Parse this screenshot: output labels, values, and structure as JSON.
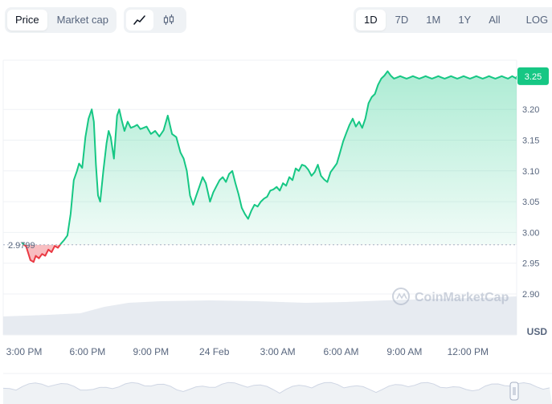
{
  "toggles": {
    "metric": [
      {
        "label": "Price",
        "active": true
      },
      {
        "label": "Market cap",
        "active": false
      }
    ],
    "chart_style": [
      {
        "icon": "line-chart-icon",
        "active": true
      },
      {
        "icon": "candlestick-icon",
        "active": false
      }
    ]
  },
  "ranges": [
    {
      "label": "1D",
      "active": true
    },
    {
      "label": "7D",
      "active": false
    },
    {
      "label": "1M",
      "active": false
    },
    {
      "label": "1Y",
      "active": false
    },
    {
      "label": "All",
      "active": false
    }
  ],
  "log_label": "LOG",
  "download_icon": "download-icon",
  "watermark": "CoinMarketCap",
  "currency": "USD",
  "colors": {
    "up": "#16c784",
    "down": "#ea3943",
    "axis_text": "#58667e",
    "grid": "#eff2f5",
    "volume": "#e3e7ee"
  },
  "chart_data": {
    "type": "area",
    "x_tick_labels": [
      "3:00 PM",
      "6:00 PM",
      "9:00 PM",
      "24 Feb",
      "3:00 AM",
      "6:00 AM",
      "9:00 AM",
      "12:00 PM"
    ],
    "y_tick_labels": [
      "3.20",
      "3.15",
      "3.10",
      "3.05",
      "3.00",
      "2.95",
      "2.90"
    ],
    "ylim": [
      2.86,
      3.3
    ],
    "reference_price": 2.9799,
    "reference_label": "2.9799",
    "current_price": 3.2539,
    "current_label": "3.25",
    "grid": true,
    "x_hours_from_3pm": [
      -0.1,
      0.1,
      0.3,
      0.45,
      0.55,
      0.7,
      0.85,
      1.0,
      1.15,
      1.3,
      1.45,
      1.6,
      1.75,
      1.9,
      2.05,
      2.2,
      2.35,
      2.5,
      2.6,
      2.75,
      2.9,
      3.05,
      3.2,
      3.3,
      3.4,
      3.5,
      3.6,
      3.75,
      3.9,
      4.0,
      4.1,
      4.25,
      4.4,
      4.5,
      4.6,
      4.75,
      4.9,
      5.05,
      5.2,
      5.35,
      5.5,
      5.65,
      5.8,
      6.0,
      6.2,
      6.4,
      6.6,
      6.8,
      7.0,
      7.2,
      7.4,
      7.55,
      7.7,
      7.85,
      8.0,
      8.15,
      8.3,
      8.45,
      8.6,
      8.8,
      8.95,
      9.1,
      9.25,
      9.4,
      9.55,
      9.7,
      9.85,
      10.0,
      10.15,
      10.3,
      10.45,
      10.6,
      10.75,
      10.9,
      11.05,
      11.2,
      11.35,
      11.5,
      11.65,
      11.8,
      11.95,
      12.1,
      12.25,
      12.4,
      12.55,
      12.7,
      12.85,
      13.0,
      13.15,
      13.3,
      13.45,
      13.6,
      13.75,
      13.9,
      14.05,
      14.2,
      14.35,
      14.5,
      14.65,
      14.8,
      14.95,
      15.1,
      15.25,
      15.4,
      15.55,
      15.7,
      15.85,
      16.0,
      16.15,
      16.3,
      16.45,
      16.6,
      16.75,
      16.9,
      17.05,
      17.2,
      17.35,
      17.5,
      17.65,
      17.8,
      17.95,
      18.1,
      18.25,
      18.4,
      18.55,
      18.7,
      18.85,
      19.0,
      19.15,
      19.3,
      19.45,
      19.6,
      19.75,
      19.9,
      20.05,
      20.2,
      20.35,
      20.5,
      20.65,
      20.8,
      20.95,
      21.1,
      21.25,
      21.4,
      21.55,
      21.7,
      21.85,
      22.0,
      22.15,
      22.3,
      22.45,
      22.6,
      22.75,
      22.9,
      23.0,
      23.1,
      23.2,
      23.3,
      23.4,
      23.5
    ],
    "y_price": [
      2.983,
      2.977,
      2.955,
      2.952,
      2.962,
      2.958,
      2.965,
      2.962,
      2.972,
      2.968,
      2.978,
      2.975,
      2.982,
      2.988,
      2.995,
      3.03,
      3.085,
      3.1,
      3.112,
      3.105,
      3.155,
      3.185,
      3.2,
      3.18,
      3.11,
      3.06,
      3.05,
      3.1,
      3.145,
      3.165,
      3.155,
      3.12,
      3.19,
      3.2,
      3.185,
      3.165,
      3.18,
      3.17,
      3.172,
      3.175,
      3.168,
      3.17,
      3.172,
      3.16,
      3.165,
      3.156,
      3.166,
      3.19,
      3.16,
      3.155,
      3.13,
      3.12,
      3.1,
      3.06,
      3.045,
      3.06,
      3.075,
      3.09,
      3.08,
      3.05,
      3.065,
      3.075,
      3.085,
      3.09,
      3.082,
      3.095,
      3.1,
      3.08,
      3.062,
      3.04,
      3.03,
      3.022,
      3.035,
      3.045,
      3.042,
      3.05,
      3.055,
      3.058,
      3.068,
      3.07,
      3.074,
      3.068,
      3.08,
      3.076,
      3.09,
      3.085,
      3.104,
      3.1,
      3.11,
      3.108,
      3.102,
      3.092,
      3.098,
      3.11,
      3.092,
      3.086,
      3.082,
      3.098,
      3.105,
      3.112,
      3.13,
      3.148,
      3.162,
      3.175,
      3.185,
      3.172,
      3.18,
      3.17,
      3.185,
      3.21,
      3.22,
      3.225,
      3.24,
      3.25,
      3.255,
      3.262,
      3.255,
      3.25,
      3.252,
      3.254,
      3.252,
      3.25,
      3.252,
      3.254,
      3.252,
      3.25,
      3.252,
      3.254,
      3.252,
      3.25,
      3.252,
      3.254,
      3.252,
      3.25,
      3.252,
      3.254,
      3.252,
      3.25,
      3.252,
      3.254,
      3.252,
      3.25,
      3.252,
      3.254,
      3.252,
      3.25,
      3.252,
      3.254,
      3.252,
      3.25,
      3.252,
      3.254,
      3.252,
      3.25,
      3.252,
      3.254,
      3.252,
      3.25,
      3.252,
      3.254
    ]
  }
}
